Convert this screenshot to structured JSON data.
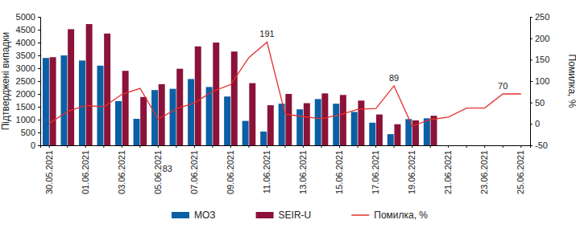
{
  "chart_data": {
    "type": "bar",
    "y_label": "Підтверджені випадки",
    "y2_label": "Помилка, %",
    "categories": [
      "30.05.2021",
      null,
      "01.06.2021",
      null,
      "03.06.2021",
      null,
      "05.06.2021",
      null,
      "07.06.2021",
      null,
      "09.06.2021",
      null,
      "11.06.2021",
      null,
      "13.06.2021",
      null,
      "15.06.2021",
      null,
      "17.06.2021",
      null,
      "19.06.2021",
      null,
      "21.06.2021",
      null,
      "23.06.2021",
      null,
      "25.06.2021"
    ],
    "series": [
      {
        "name": "МОЗ",
        "type": "bar",
        "color": "#0b5fa5",
        "values": [
          3400,
          3500,
          3300,
          3100,
          1720,
          1030,
          2150,
          2200,
          2580,
          2270,
          1900,
          950,
          535,
          1620,
          1400,
          1800,
          1620,
          1300,
          880,
          434,
          1020,
          1050,
          null,
          null,
          null,
          null,
          null
        ]
      },
      {
        "name": "SEIR-U",
        "type": "bar",
        "color": "#8b1238",
        "values": [
          3430,
          4520,
          4720,
          4350,
          2900,
          1880,
          2380,
          2980,
          3850,
          4000,
          3650,
          2420,
          1560,
          2000,
          1640,
          2020,
          1960,
          1740,
          1200,
          820,
          970,
          1150,
          null,
          null,
          null,
          null,
          null
        ]
      },
      {
        "name": "Помилка, %",
        "type": "line",
        "axis": "y2",
        "color": "#e3312d",
        "line_style": "solid",
        "values": [
          1,
          29,
          43,
          40,
          69,
          83,
          11,
          35,
          49,
          76,
          92,
          155,
          191,
          23,
          17,
          12,
          21,
          34,
          36,
          89,
          -5,
          10,
          16,
          37,
          37,
          70,
          70
        ]
      }
    ],
    "annotations": [
      {
        "x": 5,
        "y": 83,
        "text": "83"
      },
      {
        "x": 12,
        "y": 191,
        "text": "191"
      },
      {
        "x": 19,
        "y": 89,
        "text": "89"
      },
      {
        "x": 25,
        "y": 70,
        "text": "70"
      }
    ],
    "ylim": [
      0,
      5000
    ],
    "yticks": [
      0,
      500,
      1000,
      1500,
      2000,
      2500,
      3000,
      3500,
      4000,
      4500,
      5000
    ],
    "y2lim": [
      -50,
      250
    ],
    "y2ticks": [
      -50,
      0,
      50,
      100,
      150,
      200,
      250
    ],
    "grid": false,
    "legend": "bottom"
  }
}
